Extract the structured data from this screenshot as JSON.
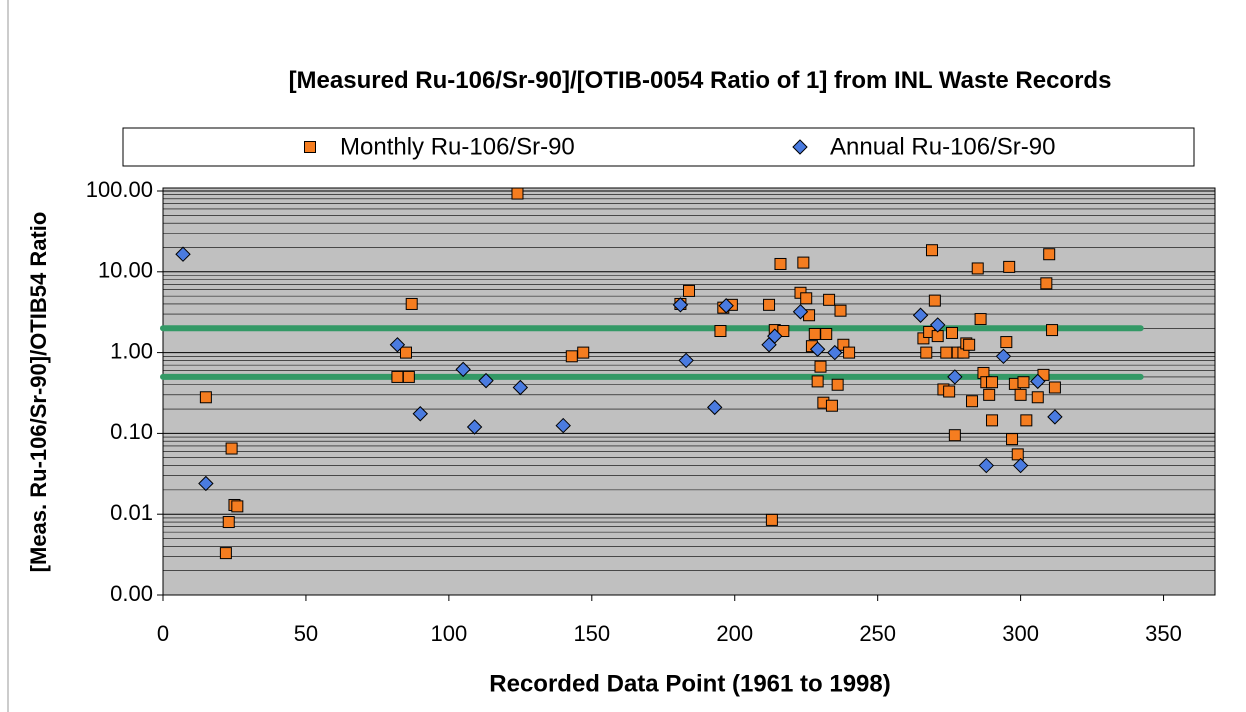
{
  "chart_data": {
    "type": "scatter",
    "title": "[Measured Ru-106/Sr-90]/[OTIB-0054 Ratio of 1] from INL Waste Records",
    "x_label": "Recorded Data Point (1961 to 1998)",
    "y_label": "[Meas. Ru-106/Sr-90]/OTIB54 Ratio",
    "y_log": true,
    "grid": true,
    "minor_grid": true,
    "legend": "top",
    "xlim": [
      0,
      368
    ],
    "xticks": [
      0,
      50,
      100,
      150,
      200,
      250,
      300,
      350
    ],
    "ylim": [
      0.001,
      100
    ],
    "yticks": [
      {
        "value": 0.001,
        "label": "0.00"
      },
      0.01,
      {
        "value": 0.1,
        "label": "0.10"
      },
      {
        "value": 1,
        "label": "1.00"
      },
      {
        "value": 10,
        "label": "10.00"
      },
      {
        "value": 100,
        "label": "100.00"
      }
    ],
    "reference_lines": [
      {
        "y": 2,
        "x": [
          0,
          342
        ],
        "color": "#339966"
      },
      {
        "y": 0.5,
        "x": [
          0,
          342
        ],
        "color": "#339966"
      }
    ],
    "series": [
      {
        "name": "Monthly Ru-106/Sr-90",
        "color": "#f57d20",
        "marker": "square",
        "x": [
          15,
          22,
          23,
          24,
          25,
          26,
          82,
          85,
          86,
          87,
          124,
          143,
          147,
          181,
          184,
          195,
          196,
          199,
          212,
          213,
          214,
          216,
          217,
          223,
          224,
          225,
          226,
          227,
          228,
          229,
          230,
          231,
          232,
          233,
          234,
          236,
          237,
          238,
          240,
          266,
          267,
          268,
          269,
          270,
          271,
          273,
          274,
          275,
          276,
          277,
          278,
          280,
          281,
          282,
          283,
          285,
          286,
          287,
          288,
          289,
          290,
          290,
          295,
          296,
          297,
          298,
          299,
          300,
          301,
          302,
          306,
          308,
          309,
          310,
          311,
          312
        ],
        "values": [
          0.28,
          0.0033,
          0.008,
          0.065,
          0.013,
          0.0125,
          0.5,
          1.0,
          0.5,
          4.0,
          93,
          0.9,
          1.0,
          4.0,
          5.8,
          1.85,
          3.6,
          3.9,
          3.9,
          0.0085,
          1.9,
          12.5,
          1.85,
          5.5,
          13,
          4.7,
          2.9,
          1.2,
          1.7,
          0.44,
          0.67,
          0.24,
          1.7,
          4.5,
          0.22,
          0.4,
          3.3,
          1.25,
          1.0,
          1.5,
          1.0,
          1.8,
          18.5,
          4.4,
          1.6,
          0.35,
          1.0,
          0.33,
          1.75,
          0.095,
          1.0,
          1.0,
          1.3,
          1.25,
          0.25,
          11,
          2.6,
          0.56,
          0.43,
          0.3,
          0.43,
          0.145,
          1.35,
          11.5,
          0.085,
          0.41,
          0.055,
          0.3,
          0.43,
          0.145,
          0.28,
          0.53,
          7.2,
          16.5,
          1.9,
          0.37
        ]
      },
      {
        "name": "Annual Ru-106/Sr-90",
        "color": "#4a7be0",
        "marker": "diamond",
        "x": [
          7,
          15,
          82,
          90,
          105,
          109,
          113,
          125,
          140,
          181,
          183,
          193,
          197,
          212,
          214,
          223,
          229,
          235,
          265,
          271,
          277,
          288,
          294,
          300,
          306,
          312
        ],
        "values": [
          16.5,
          0.024,
          1.25,
          0.175,
          0.62,
          0.12,
          0.45,
          0.37,
          0.125,
          3.9,
          0.8,
          0.21,
          3.8,
          1.25,
          1.6,
          3.2,
          1.1,
          1.0,
          2.9,
          2.2,
          0.5,
          0.04,
          0.9,
          0.04,
          0.44,
          0.16
        ]
      }
    ]
  }
}
